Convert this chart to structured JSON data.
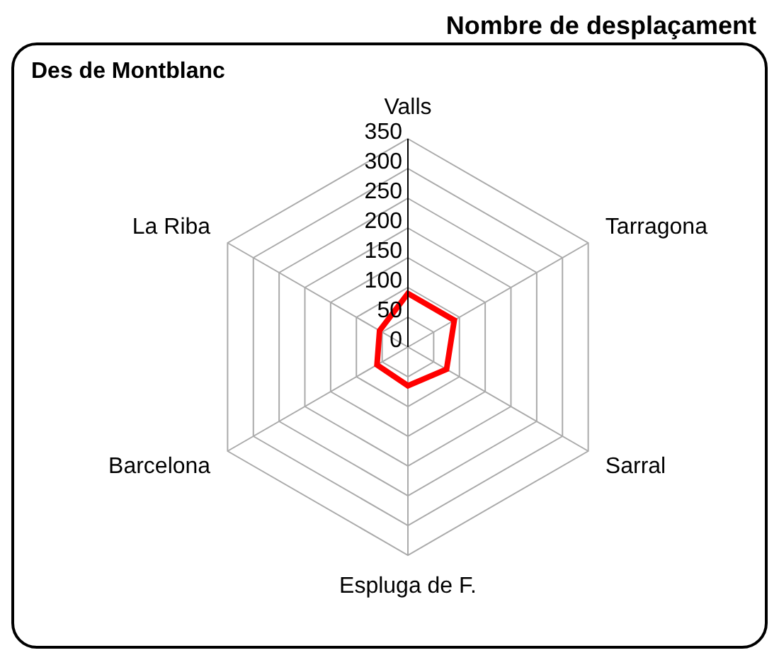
{
  "chart_data": {
    "type": "radar",
    "title": "Des de Montblanc",
    "subtitle": "Nombre de desplaçament",
    "categories": [
      "Valls",
      "Tarragona",
      "Sarral",
      "Espluga de F.",
      "Barcelona",
      "La Riba"
    ],
    "series": [
      {
        "color": "#ff0000",
        "values": [
          90,
          90,
          75,
          65,
          60,
          55
        ]
      }
    ],
    "ylim": [
      0,
      350
    ],
    "yticks": [
      0,
      50,
      100,
      150,
      200,
      250,
      300,
      350
    ],
    "grid": true,
    "legend": false,
    "marker": "none"
  }
}
